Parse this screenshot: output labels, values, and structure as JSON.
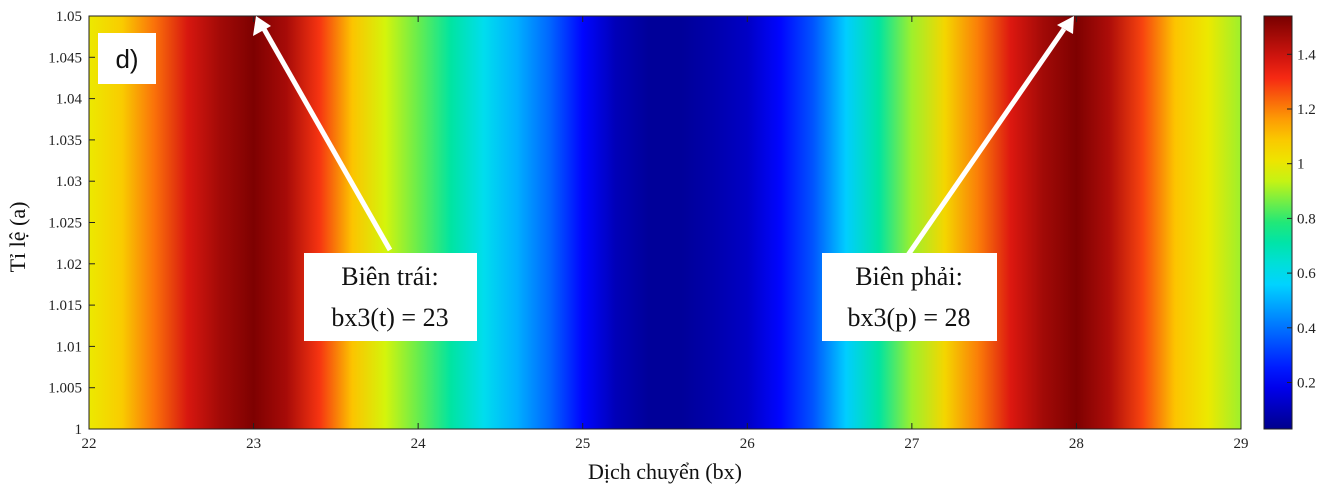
{
  "chart_data": {
    "type": "heatmap",
    "title": "",
    "panel_label": "d)",
    "xlabel": "Dịch chuyển (bx)",
    "ylabel": "Tỉ lệ (a)",
    "xlim": [
      22,
      29
    ],
    "ylim": [
      1,
      1.05
    ],
    "x_ticks": [
      "22",
      "23",
      "24",
      "25",
      "26",
      "27",
      "28",
      "29"
    ],
    "y_ticks": [
      "1",
      "1.005",
      "1.01",
      "1.015",
      "1.02",
      "1.025",
      "1.03",
      "1.035",
      "1.04",
      "1.045",
      "1.05"
    ],
    "colorbar": {
      "ticks": [
        "0.2",
        "0.4",
        "0.6",
        "0.8",
        "1",
        "1.2",
        "1.4"
      ],
      "range": [
        0.03,
        1.54
      ],
      "colormap": "jet"
    },
    "column_profile": {
      "x": [
        22.0,
        22.2,
        22.4,
        22.6,
        22.8,
        23.0,
        23.2,
        23.4,
        23.6,
        23.8,
        24.0,
        24.2,
        24.4,
        24.6,
        24.8,
        25.0,
        25.2,
        25.4,
        25.6,
        25.8,
        26.0,
        26.2,
        26.4,
        26.6,
        26.8,
        27.0,
        27.2,
        27.4,
        27.6,
        27.8,
        28.0,
        28.2,
        28.4,
        28.6,
        28.8,
        29.0
      ],
      "value": [
        1.0,
        1.08,
        1.22,
        1.38,
        1.47,
        1.53,
        1.46,
        1.3,
        1.1,
        0.95,
        0.85,
        0.72,
        0.6,
        0.5,
        0.38,
        0.22,
        0.1,
        0.05,
        0.05,
        0.08,
        0.12,
        0.22,
        0.35,
        0.55,
        0.72,
        0.9,
        1.05,
        1.2,
        1.37,
        1.47,
        1.53,
        1.45,
        1.28,
        1.1,
        1.0,
        0.9
      ]
    },
    "annotations": [
      {
        "id": "left",
        "lines": [
          "Biên trái:",
          "bx3(t) = 23"
        ],
        "arrow_to": [
          23,
          1.05
        ]
      },
      {
        "id": "right",
        "lines": [
          "Biên phải:",
          "bx3(p) = 28"
        ],
        "arrow_to": [
          28,
          1.05
        ]
      }
    ]
  }
}
